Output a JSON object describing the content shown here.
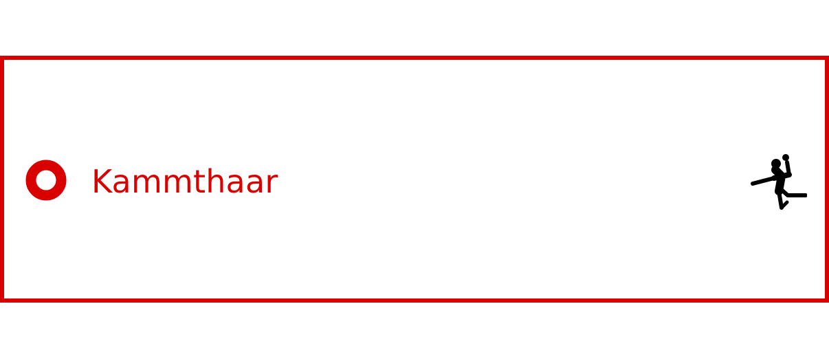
{
  "team": {
    "name": "Kammthaar",
    "marker_icon": "target-ring-icon",
    "sport_icon": "handball-player-icon"
  },
  "colors": {
    "accent": "#d90000",
    "icon": "#000000",
    "background": "#ffffff"
  }
}
